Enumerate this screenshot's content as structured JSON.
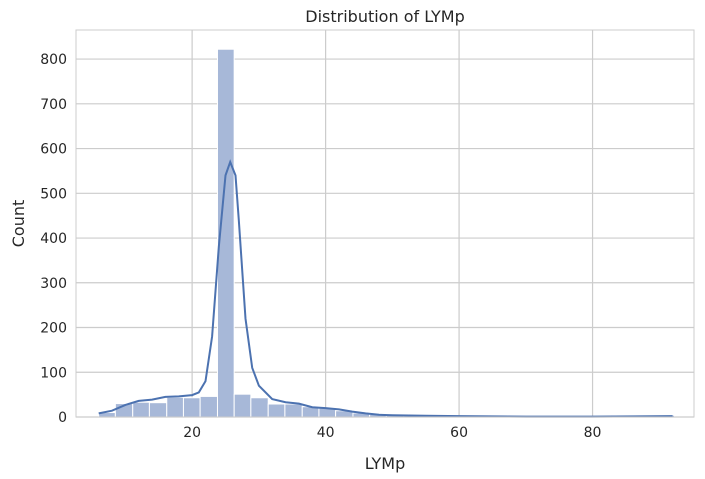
{
  "chart_data": {
    "type": "bar",
    "title": "Distribution of LYMp",
    "xlabel": "LYMp",
    "ylabel": "Count",
    "xlim": [
      2.6,
      95.2
    ],
    "ylim": [
      0,
      865
    ],
    "xticks": [
      20,
      40,
      60,
      80
    ],
    "yticks": [
      0,
      100,
      200,
      300,
      400,
      500,
      600,
      700,
      800
    ],
    "grid": true,
    "bar_color": "#a7b8d8",
    "line_color": "#4c72b0",
    "bins": [
      {
        "x0": 6.0,
        "x1": 8.5,
        "count": 10
      },
      {
        "x0": 8.5,
        "x1": 11.1,
        "count": 30
      },
      {
        "x0": 11.1,
        "x1": 13.6,
        "count": 33
      },
      {
        "x0": 13.6,
        "x1": 16.2,
        "count": 32
      },
      {
        "x0": 16.2,
        "x1": 18.7,
        "count": 44
      },
      {
        "x0": 18.7,
        "x1": 21.2,
        "count": 43
      },
      {
        "x0": 21.2,
        "x1": 23.8,
        "count": 46
      },
      {
        "x0": 23.8,
        "x1": 26.3,
        "count": 822
      },
      {
        "x0": 26.3,
        "x1": 28.8,
        "count": 51
      },
      {
        "x0": 28.8,
        "x1": 31.4,
        "count": 43
      },
      {
        "x0": 31.4,
        "x1": 33.9,
        "count": 29
      },
      {
        "x0": 33.9,
        "x1": 36.5,
        "count": 29
      },
      {
        "x0": 36.5,
        "x1": 39.0,
        "count": 23
      },
      {
        "x0": 39.0,
        "x1": 41.5,
        "count": 20
      },
      {
        "x0": 41.5,
        "x1": 44.1,
        "count": 14
      },
      {
        "x0": 44.1,
        "x1": 46.6,
        "count": 9
      },
      {
        "x0": 46.6,
        "x1": 49.1,
        "count": 6
      },
      {
        "x0": 49.1,
        "x1": 51.7,
        "count": 4
      },
      {
        "x0": 51.7,
        "x1": 54.2,
        "count": 3
      },
      {
        "x0": 54.2,
        "x1": 56.8,
        "count": 3
      },
      {
        "x0": 56.8,
        "x1": 59.3,
        "count": 3
      },
      {
        "x0": 59.3,
        "x1": 61.8,
        "count": 1
      },
      {
        "x0": 61.8,
        "x1": 64.4,
        "count": 1
      },
      {
        "x0": 64.4,
        "x1": 66.9,
        "count": 1
      },
      {
        "x0": 66.9,
        "x1": 69.5,
        "count": 1
      },
      {
        "x0": 69.5,
        "x1": 72.0,
        "count": 1
      },
      {
        "x0": 72.0,
        "x1": 74.5,
        "count": 1
      },
      {
        "x0": 74.5,
        "x1": 77.1,
        "count": 1
      },
      {
        "x0": 77.1,
        "x1": 79.6,
        "count": 1
      },
      {
        "x0": 79.6,
        "x1": 82.1,
        "count": 1
      },
      {
        "x0": 82.1,
        "x1": 84.7,
        "count": 1
      },
      {
        "x0": 84.7,
        "x1": 87.2,
        "count": 1
      },
      {
        "x0": 87.2,
        "x1": 89.8,
        "count": 1
      },
      {
        "x0": 89.8,
        "x1": 92.3,
        "count": 4
      }
    ],
    "kde": [
      [
        6,
        8
      ],
      [
        8,
        14
      ],
      [
        10,
        27
      ],
      [
        12,
        36
      ],
      [
        14,
        39
      ],
      [
        16,
        45
      ],
      [
        18,
        46
      ],
      [
        20,
        49
      ],
      [
        21,
        55
      ],
      [
        22,
        80
      ],
      [
        23,
        180
      ],
      [
        24,
        380
      ],
      [
        25,
        540
      ],
      [
        25.7,
        570
      ],
      [
        26.5,
        540
      ],
      [
        27,
        440
      ],
      [
        28,
        220
      ],
      [
        29,
        110
      ],
      [
        30,
        70
      ],
      [
        32,
        40
      ],
      [
        34,
        33
      ],
      [
        36,
        30
      ],
      [
        38,
        22
      ],
      [
        40,
        20
      ],
      [
        42,
        17
      ],
      [
        44,
        12
      ],
      [
        46,
        8
      ],
      [
        48,
        5
      ],
      [
        50,
        4
      ],
      [
        55,
        3
      ],
      [
        60,
        2
      ],
      [
        70,
        1
      ],
      [
        80,
        1
      ],
      [
        92,
        2
      ]
    ]
  }
}
